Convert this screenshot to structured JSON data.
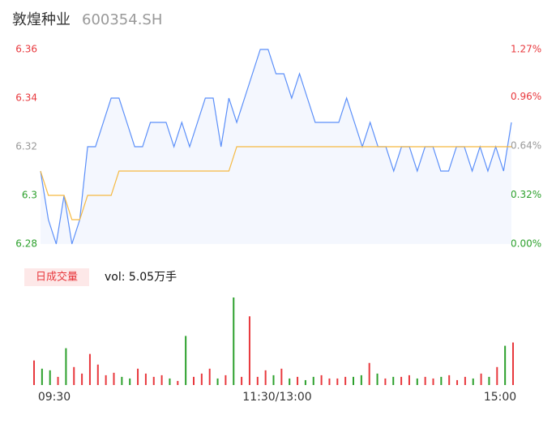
{
  "header": {
    "name": "敦煌种业",
    "code": "600354.SH"
  },
  "chart_data": {
    "type": "intraday",
    "x": [
      0,
      4,
      8,
      12,
      16,
      20,
      24,
      28,
      32,
      36,
      40,
      44,
      48,
      52,
      56,
      60,
      64,
      68,
      72,
      76,
      80,
      84,
      88,
      92,
      96,
      100,
      104,
      108,
      112,
      116,
      120,
      124,
      128,
      132,
      136,
      140,
      144,
      148,
      152,
      156,
      160,
      164,
      168,
      172,
      176,
      180,
      184,
      188,
      192,
      196,
      200,
      204,
      208,
      212,
      216,
      220,
      224,
      228,
      232,
      236,
      240
    ],
    "xlim": [
      0,
      240
    ],
    "xticks": [
      {
        "value": 0,
        "label": "09:30"
      },
      {
        "value": 120,
        "label": "11:30/13:00"
      },
      {
        "value": 240,
        "label": "15:00"
      }
    ],
    "ylim": [
      6.28,
      6.36
    ],
    "yticks": [
      6.36,
      6.34,
      6.32,
      6.3,
      6.28
    ],
    "y2lim": [
      0,
      1.27
    ],
    "y2ticks": [
      {
        "value": 1.27,
        "label": "1.27%"
      },
      {
        "value": 0.96,
        "label": "0.96%"
      },
      {
        "value": 0.64,
        "label": "0.64%"
      },
      {
        "value": 0.32,
        "label": "0.32%"
      },
      {
        "value": 0,
        "label": "0.00%"
      }
    ],
    "series": [
      {
        "color": "#5b8ff9",
        "values": [
          6.31,
          6.29,
          6.28,
          6.3,
          6.28,
          6.29,
          6.32,
          6.32,
          6.33,
          6.34,
          6.34,
          6.33,
          6.32,
          6.32,
          6.33,
          6.33,
          6.33,
          6.32,
          6.33,
          6.32,
          6.33,
          6.34,
          6.34,
          6.32,
          6.34,
          6.33,
          6.34,
          6.35,
          6.36,
          6.36,
          6.35,
          6.35,
          6.34,
          6.35,
          6.34,
          6.33,
          6.33,
          6.33,
          6.33,
          6.34,
          6.33,
          6.32,
          6.33,
          6.32,
          6.32,
          6.31,
          6.32,
          6.32,
          6.31,
          6.32,
          6.32,
          6.31,
          6.31,
          6.32,
          6.32,
          6.31,
          6.32,
          6.31,
          6.32,
          6.31,
          6.33
        ]
      },
      {
        "color": "#f5b942",
        "values": [
          6.31,
          6.3,
          6.3,
          6.3,
          6.29,
          6.29,
          6.3,
          6.3,
          6.3,
          6.3,
          6.31,
          6.31,
          6.31,
          6.31,
          6.31,
          6.31,
          6.31,
          6.31,
          6.31,
          6.31,
          6.31,
          6.31,
          6.31,
          6.31,
          6.31,
          6.32,
          6.32,
          6.32,
          6.32,
          6.32,
          6.32,
          6.32,
          6.32,
          6.32,
          6.32,
          6.32,
          6.32,
          6.32,
          6.32,
          6.32,
          6.32,
          6.32,
          6.32,
          6.32,
          6.32,
          6.32,
          6.32,
          6.32,
          6.32,
          6.32,
          6.32,
          6.32,
          6.32,
          6.32,
          6.32,
          6.32,
          6.32,
          6.32,
          6.32,
          6.32,
          6.32
        ]
      }
    ],
    "volume_label": "日成交量",
    "volume_total": "vol: 5.05万手",
    "volumes": [
      30,
      20,
      18,
      10,
      45,
      22,
      14,
      38,
      25,
      12,
      15,
      10,
      8,
      20,
      14,
      10,
      12,
      8,
      5,
      60,
      10,
      14,
      20,
      8,
      12,
      107,
      10,
      84,
      10,
      18,
      12,
      20,
      8,
      10,
      6,
      10,
      12,
      8,
      8,
      10,
      10,
      12,
      27,
      14,
      8,
      10,
      10,
      12,
      8,
      10,
      8,
      10,
      12,
      6,
      10,
      8,
      14,
      10,
      22,
      48,
      52
    ],
    "up_color": "#e8383d",
    "down_color": "#2ca02c"
  }
}
